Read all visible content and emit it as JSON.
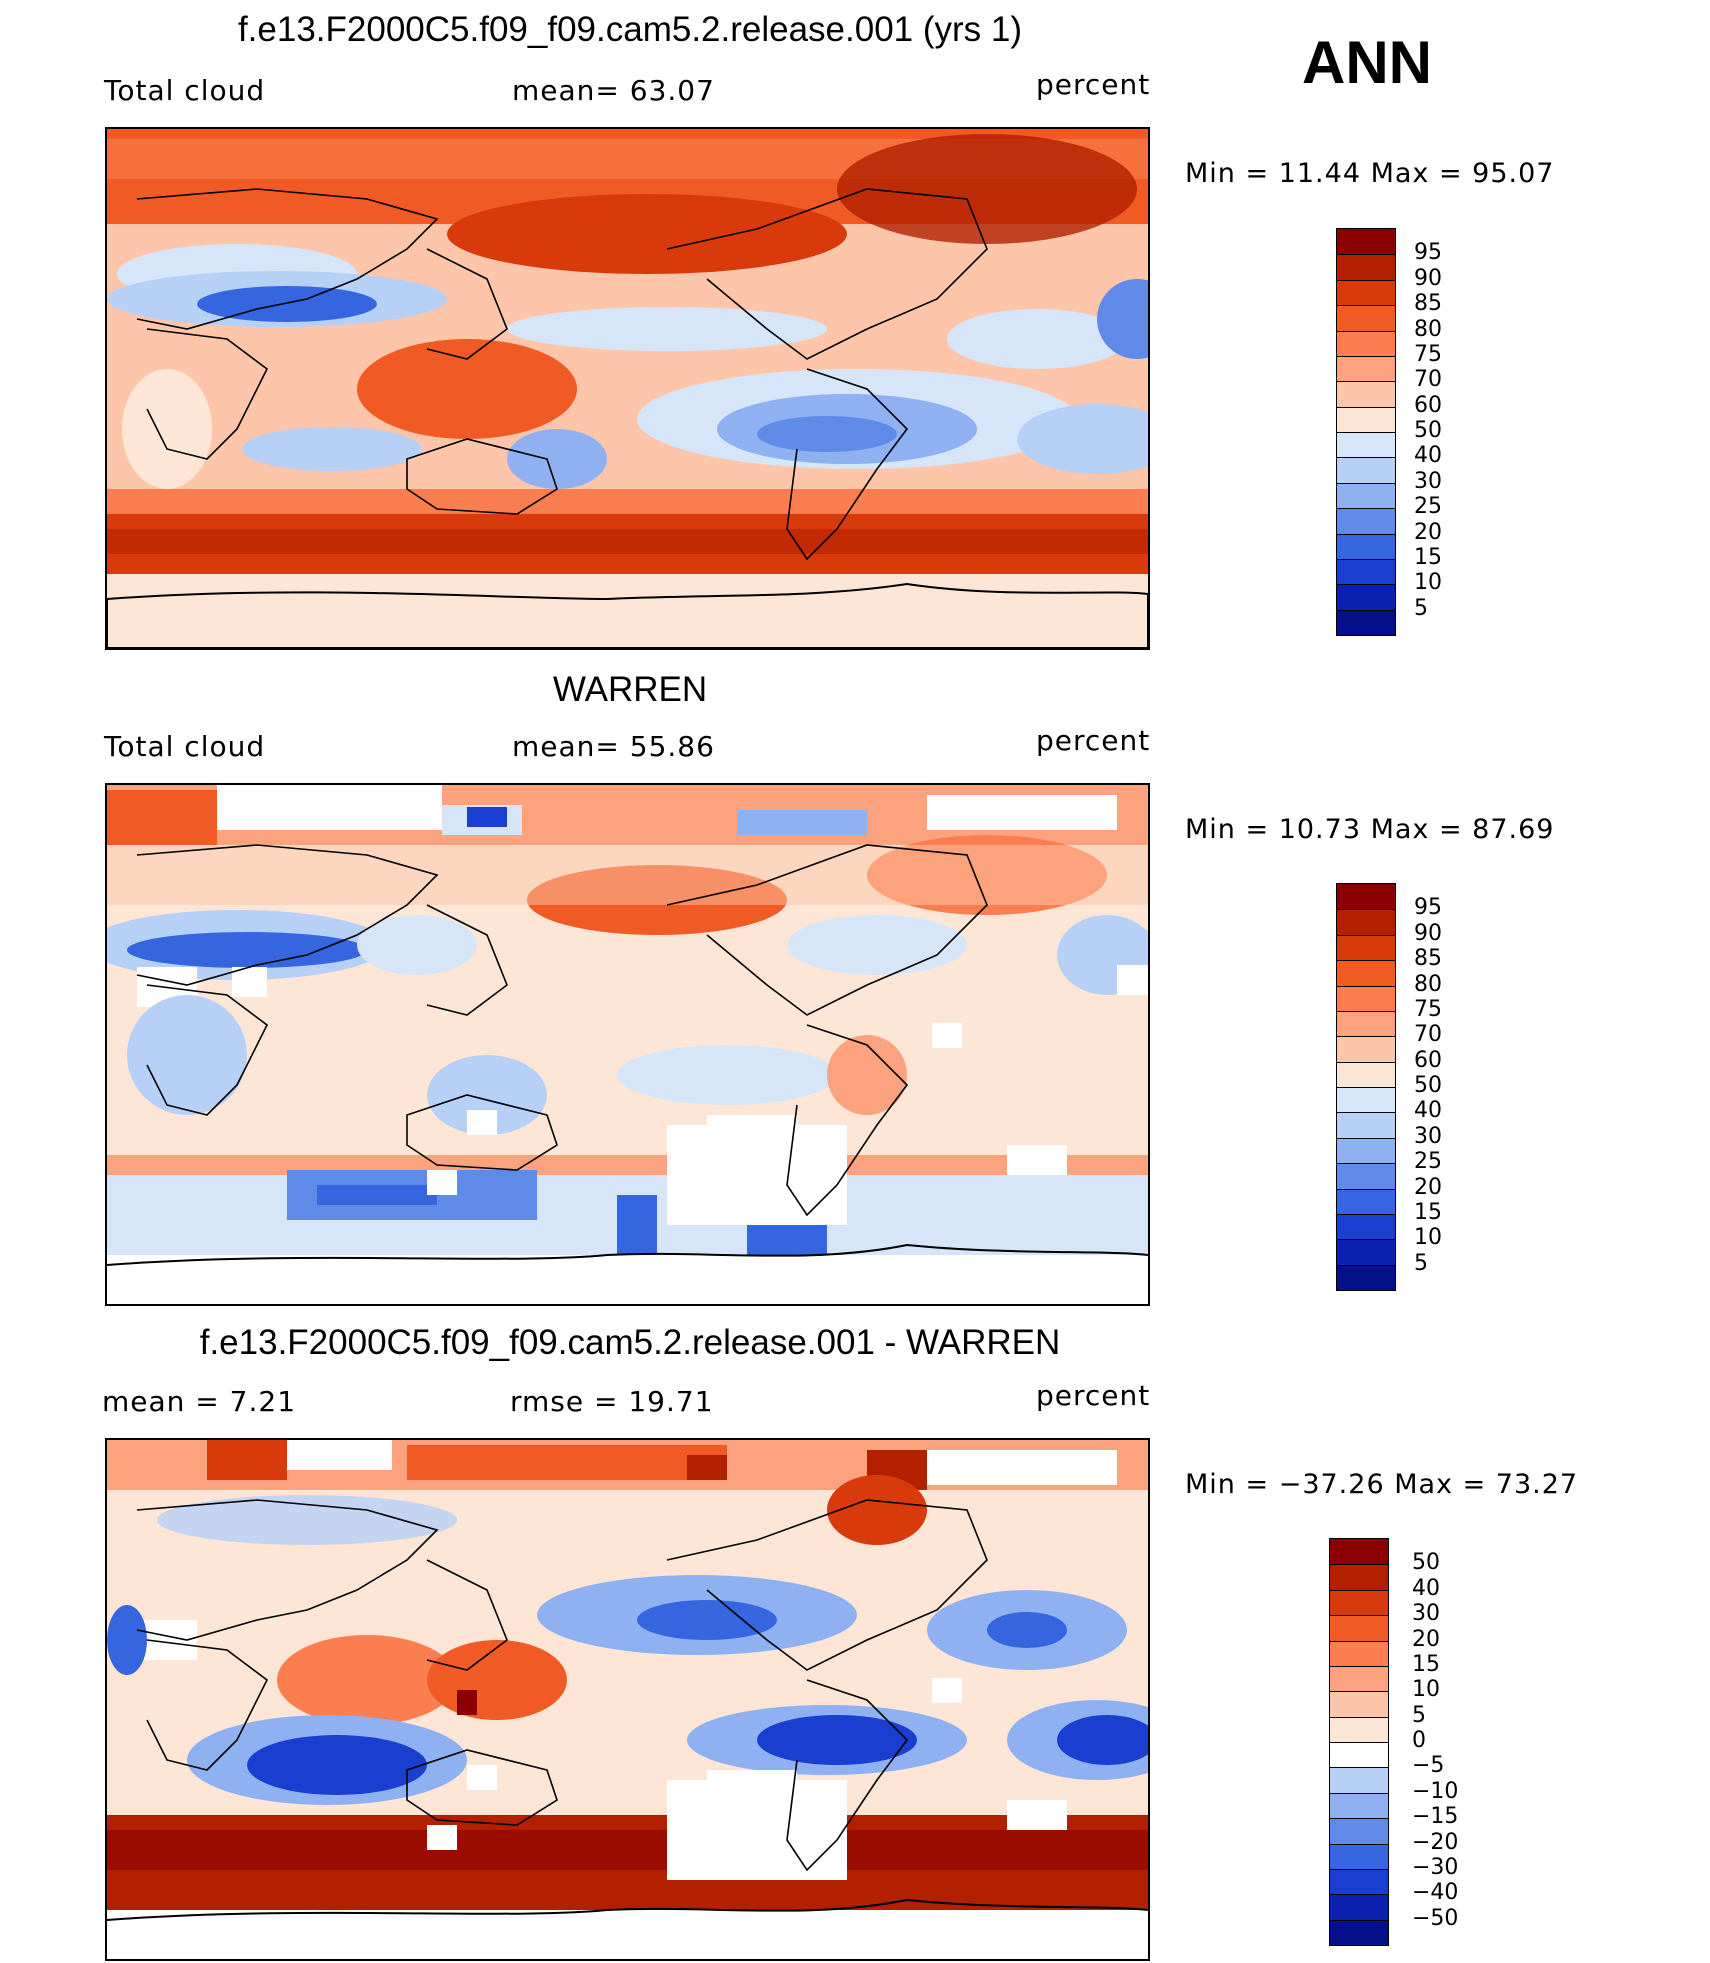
{
  "season": "ANN",
  "panels": [
    {
      "title": "f.e13.F2000C5.f09_f09.cam5.2.release.001 (yrs 1)",
      "left_label": "Total cloud",
      "mid_label": "mean=   63.07",
      "right_label": "percent",
      "minmax": "Min  =    11.44  Max  =    95.07",
      "colorbar": {
        "levels": [
          "95",
          "90",
          "85",
          "80",
          "75",
          "70",
          "60",
          "50",
          "40",
          "30",
          "25",
          "20",
          "15",
          "10",
          "5"
        ],
        "colors": [
          "#8b0000",
          "#b22000",
          "#d93a0b",
          "#f05a25",
          "#fa7e4f",
          "#fca27f",
          "#fdc6aa",
          "#fde6d6",
          "#d6e6f8",
          "#b7d0f6",
          "#8fb1f2",
          "#5f8ae8",
          "#3566e0",
          "#1a3fd0",
          "#0b21b0",
          "#03108a"
        ]
      }
    },
    {
      "title": "WARREN",
      "left_label": "Total cloud",
      "mid_label": "mean=   55.86",
      "right_label": "percent",
      "minmax": "Min  =    10.73  Max  =    87.69",
      "colorbar": {
        "levels": [
          "95",
          "90",
          "85",
          "80",
          "75",
          "70",
          "60",
          "50",
          "40",
          "30",
          "25",
          "20",
          "15",
          "10",
          "5"
        ],
        "colors": [
          "#8b0000",
          "#b22000",
          "#d93a0b",
          "#f05a25",
          "#fa7e4f",
          "#fca27f",
          "#fdc6aa",
          "#fde6d6",
          "#d6e6f8",
          "#b7d0f6",
          "#8fb1f2",
          "#5f8ae8",
          "#3566e0",
          "#1a3fd0",
          "#0b21b0",
          "#03108a"
        ]
      }
    },
    {
      "title": "f.e13.F2000C5.f09_f09.cam5.2.release.001 - WARREN",
      "left_label": "mean  =      7.21",
      "mid_label": "rmse  =    19.71",
      "right_label": "percent",
      "minmax": "Min  = −37.26  Max  =    73.27",
      "colorbar": {
        "levels": [
          "50",
          "40",
          "30",
          "20",
          "15",
          "10",
          "5",
          "0",
          "−5",
          "−10",
          "−15",
          "−20",
          "−30",
          "−40",
          "−50"
        ],
        "colors": [
          "#8b0000",
          "#b22000",
          "#d93a0b",
          "#f05a25",
          "#fa7e4f",
          "#fca27f",
          "#fdc6aa",
          "#fde6d6",
          "#ffffff",
          "#b7d0f6",
          "#8fb1f2",
          "#5f8ae8",
          "#3566e0",
          "#1a3fd0",
          "#0b21b0",
          "#03108a"
        ]
      }
    }
  ]
}
